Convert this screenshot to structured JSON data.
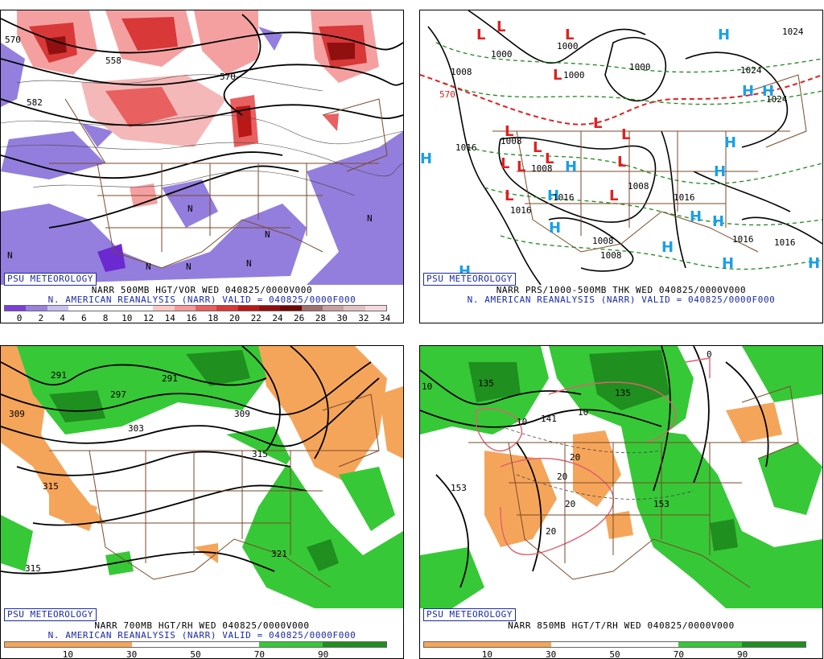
{
  "badge": "PSU METEOROLOGY",
  "panels": [
    {
      "caption1": "NARR 500MB HGT/VOR WED 040825/0000V000",
      "caption2": "N. AMERICAN REANALYSIS (NARR) VALID = 040825/0000F000",
      "colorbar": {
        "colors": [
          "#7a3fd6",
          "#9a80e0",
          "#c8bff0",
          "#ffffff",
          "#ffffff",
          "#ffffff",
          "#ffffff",
          "#ffc8c8",
          "#f59a9a",
          "#e86060",
          "#d83838",
          "#b81818",
          "#901010",
          "#700808",
          "#a07070",
          "#c8a0a0",
          "#e0c0c0",
          "#f5d8e0"
        ],
        "ticks": [
          "0",
          "2",
          "4",
          "6",
          "8",
          "10",
          "12",
          "14",
          "16",
          "18",
          "20",
          "22",
          "24",
          "26",
          "28",
          "30",
          "32",
          "34"
        ]
      },
      "labels": [
        "570",
        "558",
        "582",
        "570",
        "N",
        "N",
        "N",
        "N",
        "N",
        "N",
        "N"
      ]
    },
    {
      "caption1": "NARR PRS/1000-500MB THK WED 040825/0000V000",
      "caption2": "N. AMERICAN REANALYSIS (NARR) VALID = 040825/0000F000",
      "labels": [
        "1000",
        "1000",
        "1000",
        "1000",
        "1008",
        "1016",
        "1008",
        "1008",
        "1016",
        "1008",
        "1016",
        "1024",
        "1016",
        "1016",
        "1008",
        "1008",
        "1024",
        "1016",
        "570",
        "1024"
      ]
    },
    {
      "caption1": "NARR 700MB HGT/RH WED 040825/0000V000",
      "caption2": "N. AMERICAN REANALYSIS (NARR) VALID = 040825/0000F000",
      "colorbar": {
        "colors": [
          "#f5a55a",
          "#f5a55a",
          "#ffffff",
          "#ffffff",
          "#37c837",
          "#1f8f1f"
        ],
        "ticks": [
          "10",
          "30",
          "50",
          "70",
          "90"
        ]
      },
      "labels": [
        "291",
        "291",
        "297",
        "303",
        "309",
        "309",
        "315",
        "315",
        "315",
        "321"
      ]
    },
    {
      "caption1": "NARR 850MB HGT/T/RH WED 040825/0000V000",
      "colorbar": {
        "colors": [
          "#f5a55a",
          "#f5a55a",
          "#ffffff",
          "#ffffff",
          "#37c837",
          "#1f8f1f"
        ],
        "ticks": [
          "10",
          "30",
          "50",
          "70",
          "90"
        ]
      },
      "labels": [
        "135",
        "135",
        "141",
        "153",
        "153",
        "10",
        "10",
        "10",
        "20",
        "20",
        "20",
        "20",
        "0"
      ]
    }
  ]
}
